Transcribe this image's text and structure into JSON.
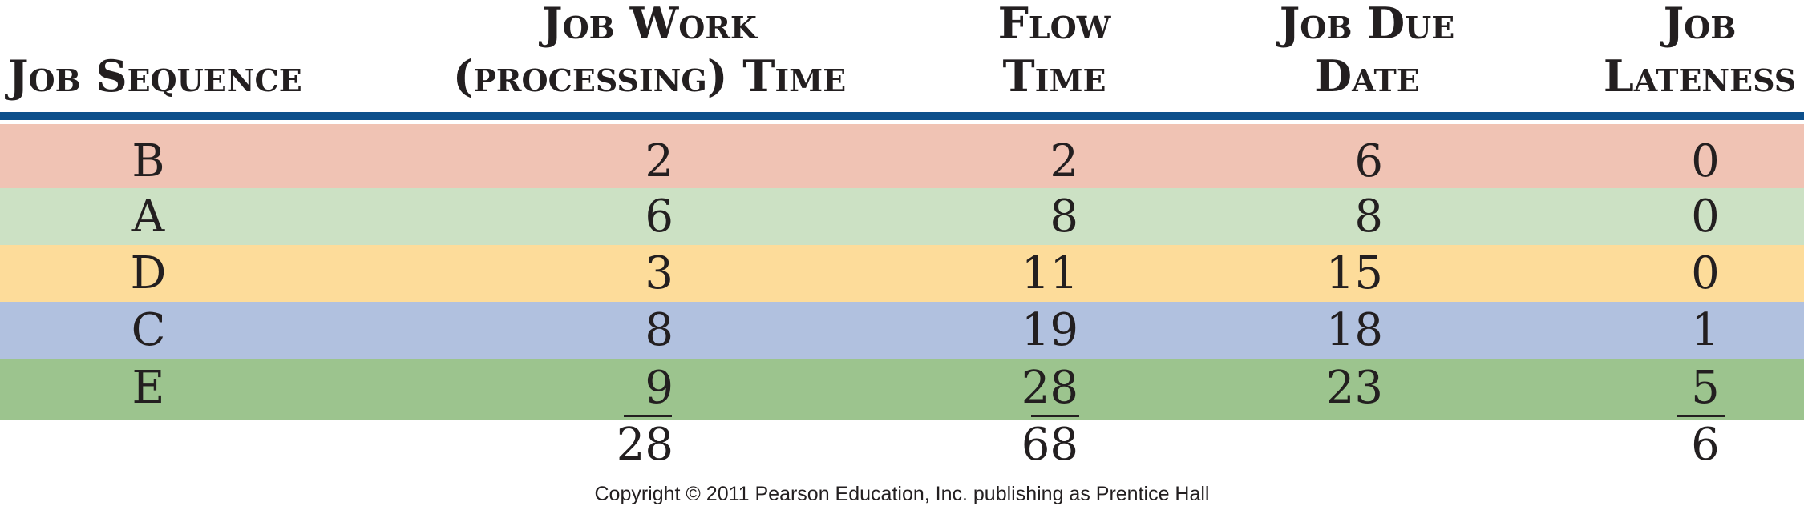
{
  "table": {
    "headers": {
      "sequence": [
        "Job Sequence"
      ],
      "work": [
        "Job Work",
        "(processing) Time"
      ],
      "flow": [
        "Flow",
        "Time"
      ],
      "due": [
        "Job Due",
        "Date"
      ],
      "lateness": [
        "Job",
        "Lateness"
      ]
    },
    "rows": [
      {
        "job": "B",
        "work": "2",
        "flow": "2",
        "due": "6",
        "lateness": "0",
        "color": "#f0c3b4"
      },
      {
        "job": "A",
        "work": "6",
        "flow": "8",
        "due": "8",
        "lateness": "0",
        "color": "#cce1c4"
      },
      {
        "job": "D",
        "work": "3",
        "flow": "11",
        "due": "15",
        "lateness": "0",
        "color": "#fddc9a"
      },
      {
        "job": "C",
        "work": "8",
        "flow": "19",
        "due": "18",
        "lateness": "1",
        "color": "#b1c1df"
      },
      {
        "job": "E",
        "work": "9",
        "flow": "28",
        "due": "23",
        "lateness": "5",
        "color": "#9cc48e"
      }
    ],
    "totals": {
      "work": "28",
      "flow": "68",
      "lateness": "6"
    },
    "rule_color": "#0d4f8b"
  },
  "footer": {
    "copyright": "Copyright © 2011 Pearson Education, Inc. publishing as Prentice Hall"
  }
}
